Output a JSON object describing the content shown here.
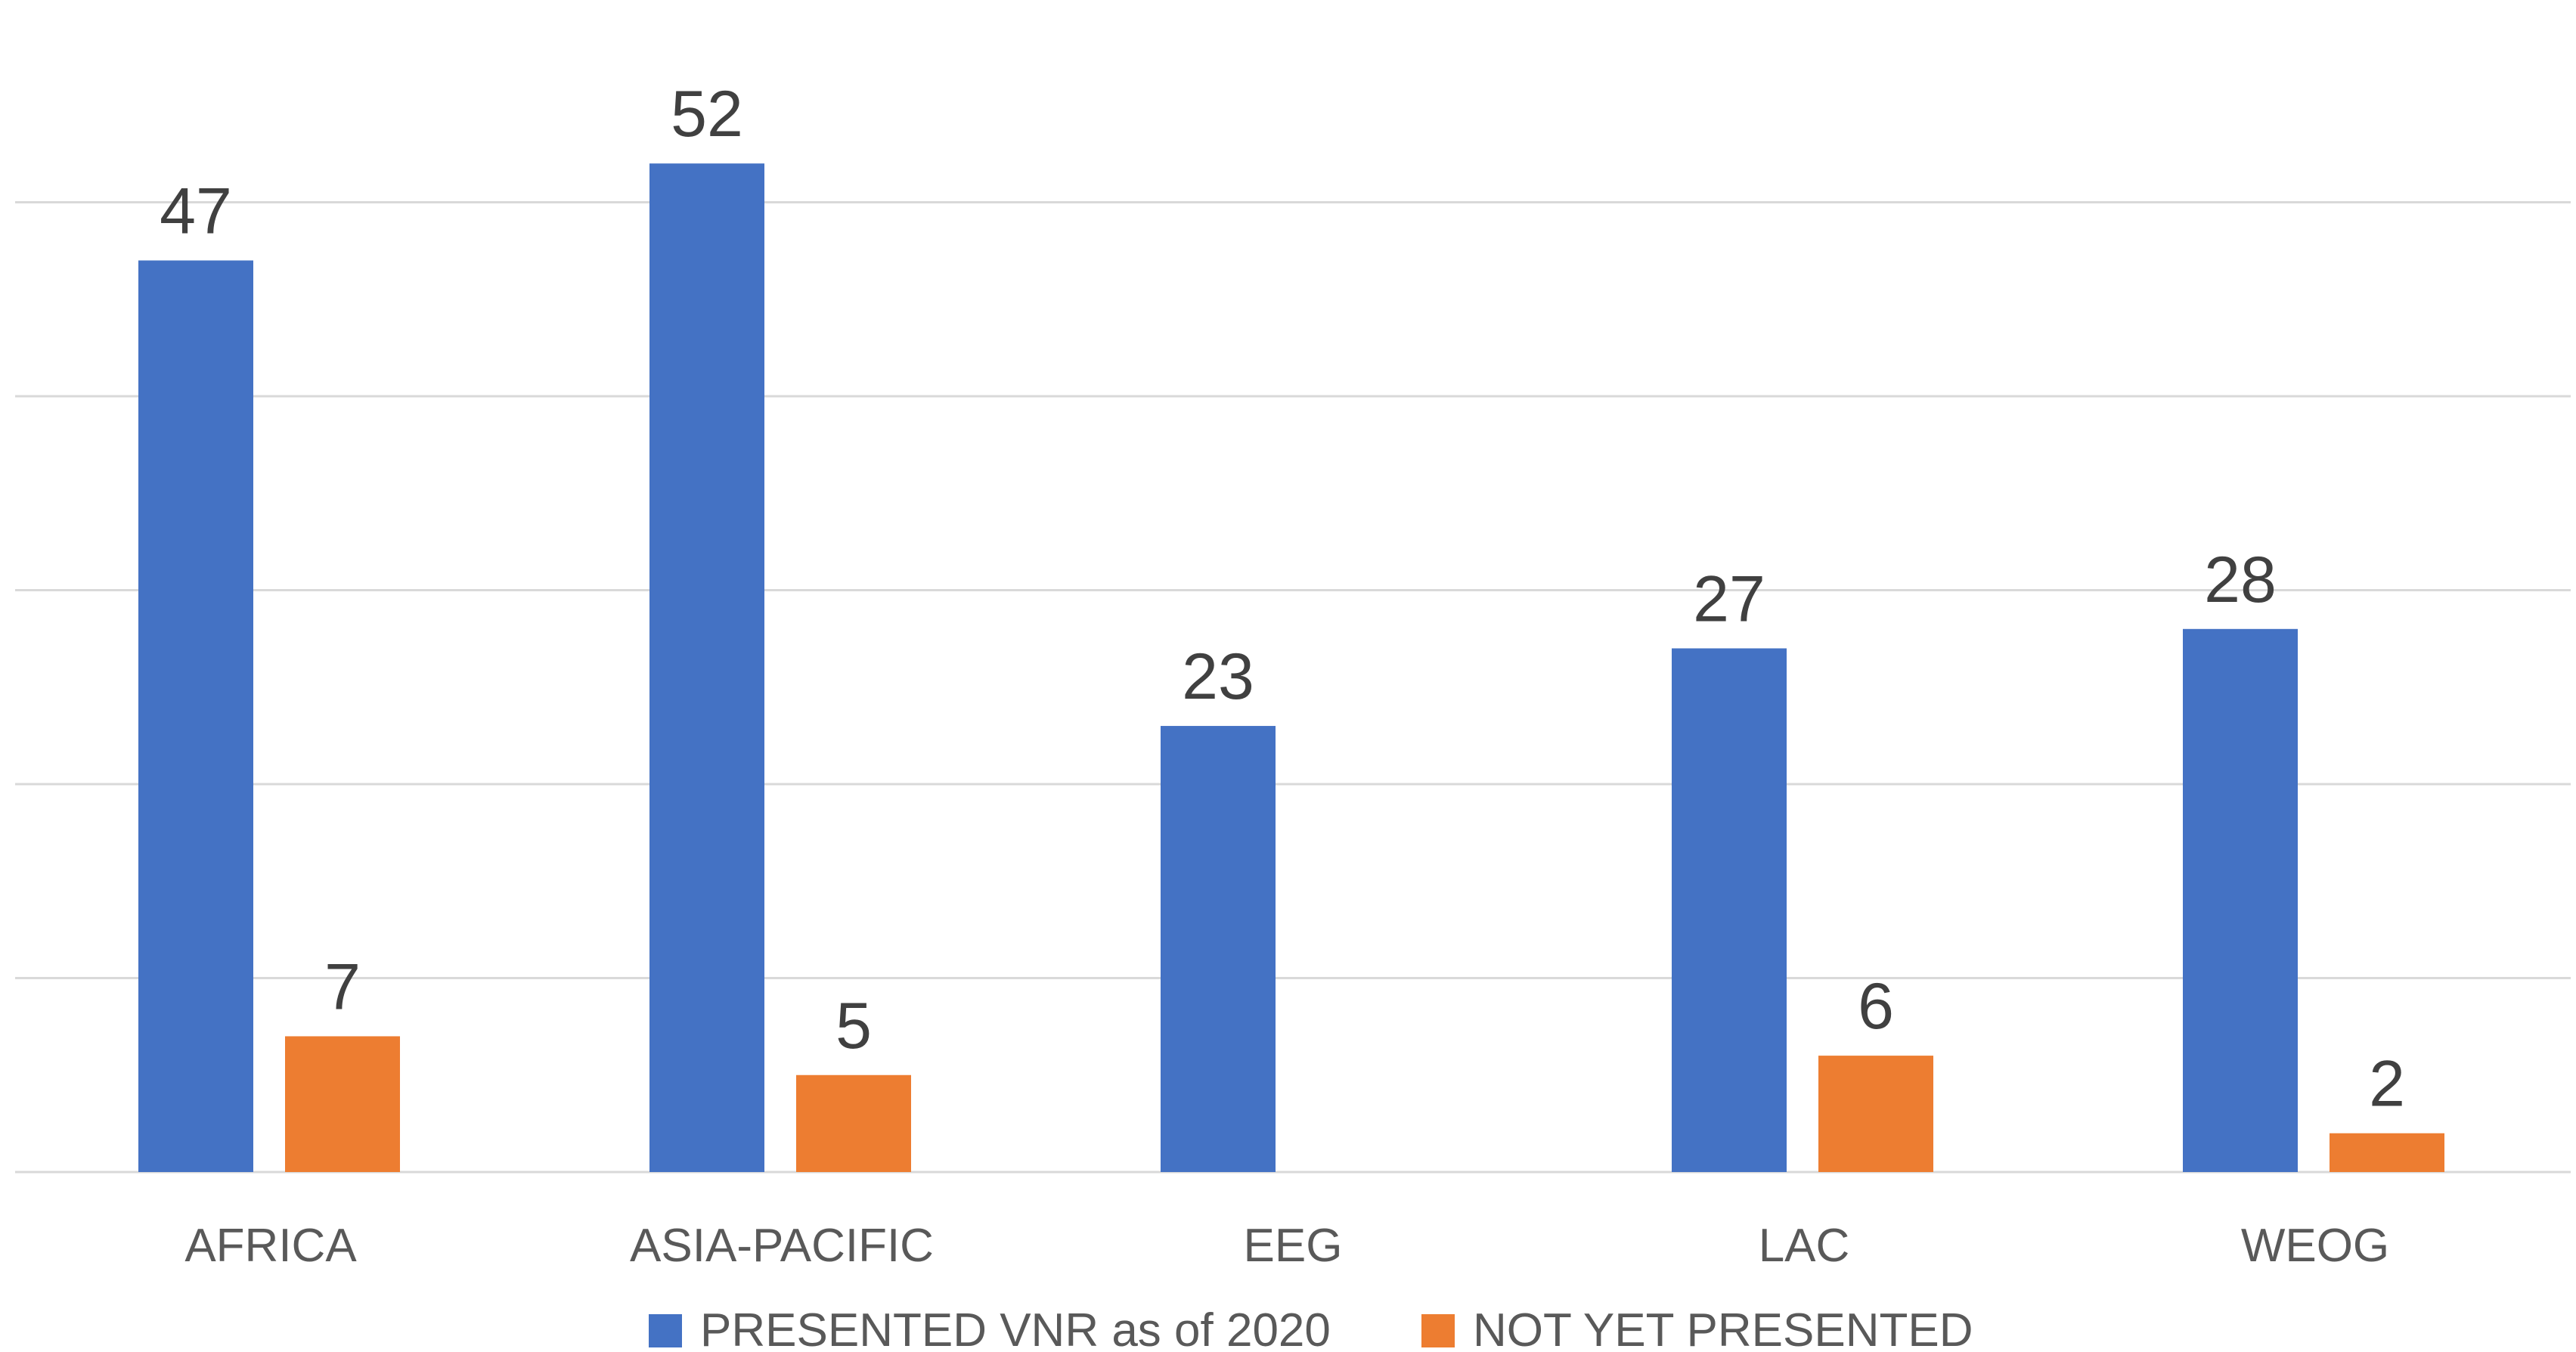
{
  "chart_data": {
    "type": "bar",
    "categories": [
      "AFRICA",
      "ASIA-PACIFIC",
      "EEG",
      "LAC",
      "WEOG"
    ],
    "series": [
      {
        "name": "PRESENTED VNR as of 2020",
        "color": "#4472c4",
        "values": [
          47,
          52,
          23,
          27,
          28
        ]
      },
      {
        "name": "NOT YET PRESENTED",
        "color": "#ed7d31",
        "values": [
          7,
          5,
          null,
          6,
          2
        ]
      }
    ],
    "data_labels": true,
    "title": "",
    "xlabel": "",
    "ylabel": "",
    "ylim": [
      0,
      60
    ],
    "y_gridlines": [
      10,
      20,
      30,
      40,
      50
    ],
    "grid": true,
    "y_tick_labels_shown": false,
    "legend": "bottom"
  }
}
